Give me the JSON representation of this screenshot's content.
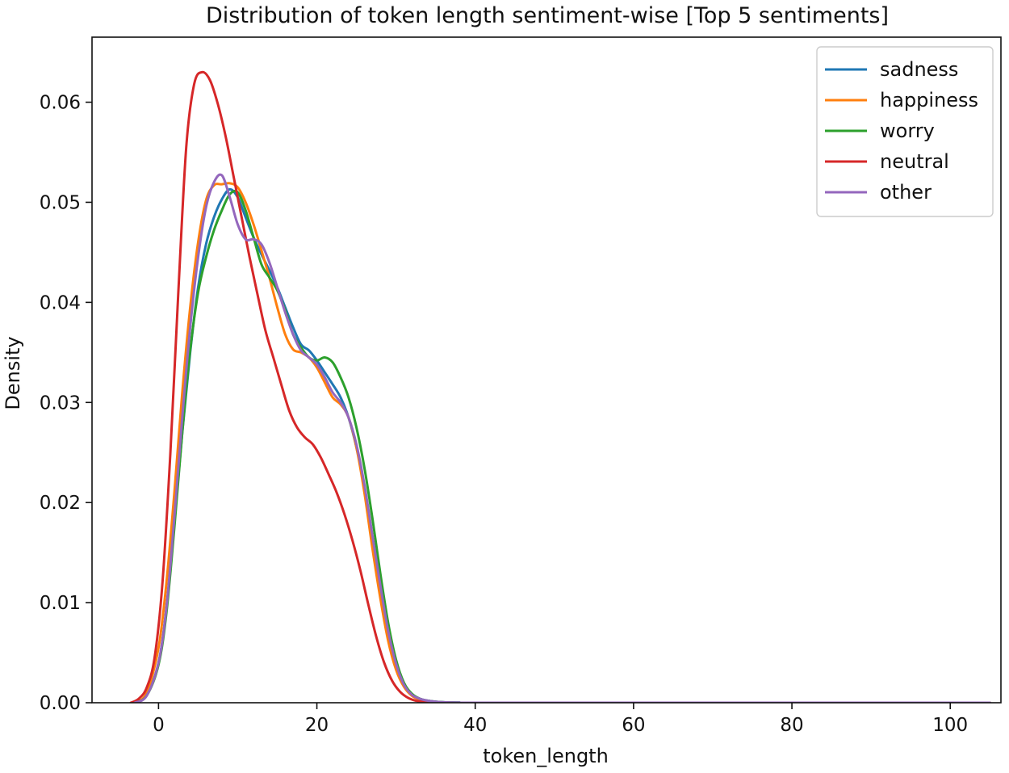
{
  "chart_data": {
    "type": "line",
    "title": "Distribution of token length sentiment-wise [Top 5 sentiments]",
    "xlabel": "token_length",
    "ylabel": "Density",
    "xlim": [
      -8.4,
      106.4
    ],
    "ylim": [
      0,
      0.0665
    ],
    "xticks": [
      0,
      20,
      40,
      60,
      80,
      100
    ],
    "yticks": [
      0.0,
      0.01,
      0.02,
      0.03,
      0.04,
      0.05,
      0.06
    ],
    "xtick_labels": [
      "0",
      "20",
      "40",
      "60",
      "80",
      "100"
    ],
    "ytick_labels": [
      "0.00",
      "0.01",
      "0.02",
      "0.03",
      "0.04",
      "0.05",
      "0.06"
    ],
    "grid": false,
    "legend_position": "top-right",
    "series": [
      {
        "name": "sadness",
        "color": "#1f77b4",
        "x": [
          -3,
          -1.5,
          0,
          1,
          2,
          3,
          4,
          5,
          6,
          7,
          8,
          9,
          10,
          11,
          12,
          13,
          14,
          15,
          16,
          17,
          18,
          19,
          20,
          21,
          22,
          23,
          24,
          25,
          26,
          27,
          28,
          29,
          30,
          31,
          32,
          33,
          34,
          35,
          36,
          38,
          40,
          105
        ],
        "y": [
          0,
          0.0008,
          0.004,
          0.0095,
          0.018,
          0.027,
          0.035,
          0.0415,
          0.0458,
          0.0485,
          0.0503,
          0.0513,
          0.0505,
          0.0485,
          0.0465,
          0.0448,
          0.0432,
          0.0415,
          0.0395,
          0.0375,
          0.0358,
          0.0352,
          0.0342,
          0.033,
          0.0318,
          0.0305,
          0.0285,
          0.0255,
          0.0215,
          0.0165,
          0.0115,
          0.007,
          0.0038,
          0.0018,
          0.0008,
          0.0004,
          0.0002,
          0.0001,
          5e-05,
          2e-05,
          0,
          0
        ]
      },
      {
        "name": "happiness",
        "color": "#ff7f0e",
        "x": [
          -3,
          -1.5,
          0,
          1,
          2,
          3,
          4,
          5,
          6,
          7,
          8,
          9,
          10,
          11,
          12,
          13,
          14,
          15,
          16,
          17,
          18,
          19,
          20,
          21,
          22,
          23,
          24,
          25,
          26,
          27,
          28,
          29,
          30,
          31,
          32,
          33,
          34,
          35,
          36,
          38,
          40,
          105
        ],
        "y": [
          0,
          0.001,
          0.0055,
          0.012,
          0.021,
          0.031,
          0.0395,
          0.046,
          0.0502,
          0.0517,
          0.0518,
          0.0519,
          0.0515,
          0.05,
          0.0478,
          0.0452,
          0.0425,
          0.0395,
          0.0368,
          0.0353,
          0.035,
          0.0345,
          0.0335,
          0.032,
          0.0305,
          0.0298,
          0.0285,
          0.0255,
          0.021,
          0.0155,
          0.0105,
          0.0062,
          0.0033,
          0.0016,
          0.0007,
          0.0003,
          0.0001,
          5e-05,
          2e-05,
          0,
          0,
          0
        ]
      },
      {
        "name": "worry",
        "color": "#2ca02c",
        "x": [
          -3,
          -1.5,
          0,
          1,
          2,
          3,
          4,
          5,
          6,
          7,
          8,
          9,
          10,
          11,
          12,
          13,
          14,
          15,
          16,
          17,
          18,
          19,
          20,
          21,
          22,
          23,
          24,
          25,
          26,
          27,
          28,
          29,
          30,
          31,
          32,
          33,
          34,
          35,
          36,
          38,
          40,
          105
        ],
        "y": [
          0,
          0.0007,
          0.0038,
          0.009,
          0.0175,
          0.027,
          0.0352,
          0.041,
          0.0445,
          0.0472,
          0.0492,
          0.0508,
          0.051,
          0.0492,
          0.0465,
          0.0438,
          0.0425,
          0.0412,
          0.0392,
          0.0368,
          0.0355,
          0.0345,
          0.0342,
          0.0345,
          0.034,
          0.0325,
          0.0305,
          0.0275,
          0.0235,
          0.0185,
          0.013,
          0.008,
          0.0043,
          0.002,
          0.0009,
          0.0004,
          0.0002,
          0.0001,
          5e-05,
          2e-05,
          0,
          0
        ]
      },
      {
        "name": "neutral",
        "color": "#d62728",
        "x": [
          -3.5,
          -2.5,
          -1.5,
          -0.5,
          0.5,
          1.5,
          2.5,
          3.5,
          4.5,
          5.5,
          6.5,
          7.5,
          8.5,
          9.5,
          10.5,
          11.5,
          12.5,
          13.5,
          14.5,
          15.5,
          16.5,
          17.5,
          18.5,
          19.5,
          20.5,
          21.5,
          22.5,
          23.5,
          24.5,
          25.5,
          26.5,
          27.5,
          28.5,
          29.5,
          30.5,
          31.5,
          32.5,
          33.5,
          35,
          38,
          45,
          105
        ],
        "y": [
          0,
          0.0004,
          0.0015,
          0.0045,
          0.012,
          0.025,
          0.041,
          0.0555,
          0.0618,
          0.063,
          0.0622,
          0.0598,
          0.0565,
          0.0525,
          0.0485,
          0.0445,
          0.0408,
          0.0372,
          0.0345,
          0.0318,
          0.0292,
          0.0275,
          0.0265,
          0.0258,
          0.0245,
          0.0228,
          0.021,
          0.0188,
          0.0162,
          0.0132,
          0.0098,
          0.0066,
          0.004,
          0.0022,
          0.0011,
          0.0005,
          0.0002,
          0.0001,
          3e-05,
          0,
          0,
          0
        ]
      },
      {
        "name": "other",
        "color": "#9467bd",
        "x": [
          -3,
          -1.5,
          0,
          1,
          2,
          3,
          4,
          5,
          6,
          7,
          8,
          9,
          10,
          11,
          12,
          13,
          14,
          15,
          16,
          17,
          18,
          19,
          20,
          21,
          22,
          23,
          24,
          25,
          26,
          27,
          28,
          29,
          30,
          31,
          32,
          33,
          34,
          35,
          36,
          38,
          40,
          105
        ],
        "y": [
          0,
          0.0007,
          0.004,
          0.0095,
          0.0185,
          0.0285,
          0.0375,
          0.0445,
          0.0495,
          0.052,
          0.0527,
          0.0505,
          0.0478,
          0.0463,
          0.0463,
          0.0458,
          0.044,
          0.0415,
          0.039,
          0.0368,
          0.0352,
          0.0345,
          0.0338,
          0.0325,
          0.031,
          0.03,
          0.0285,
          0.0258,
          0.0218,
          0.0168,
          0.0118,
          0.0072,
          0.0039,
          0.0018,
          0.0008,
          0.0004,
          0.0002,
          0.0001,
          5e-05,
          2e-05,
          0,
          0
        ]
      }
    ]
  }
}
